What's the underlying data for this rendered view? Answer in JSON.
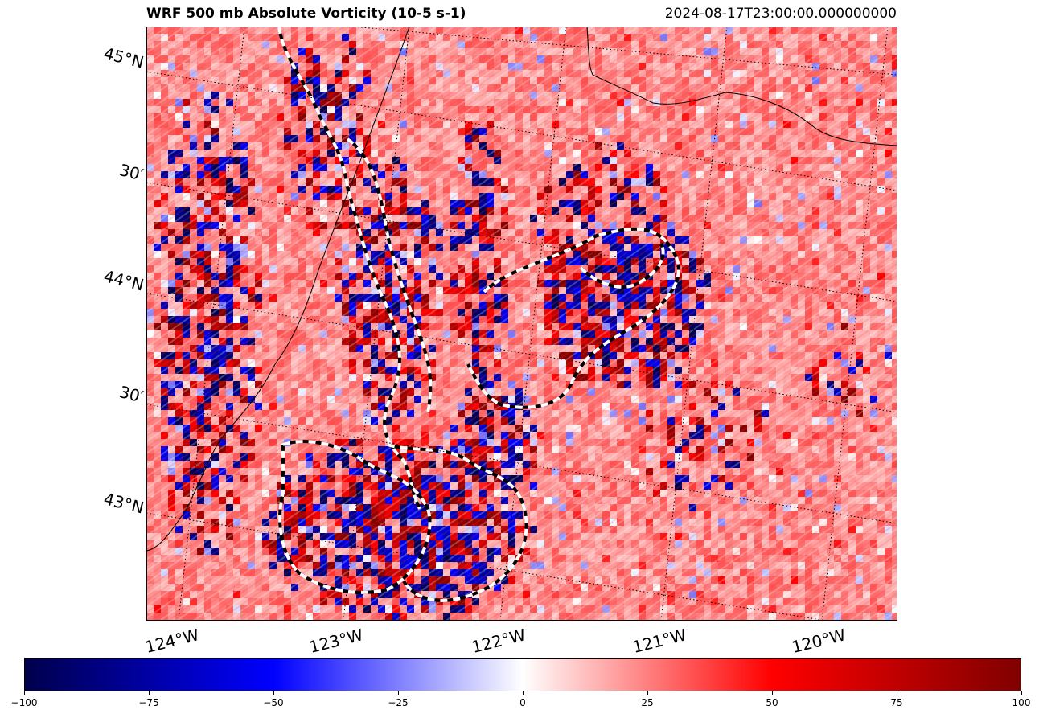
{
  "chart_data": {
    "type": "heatmap",
    "title": "WRF 500 mb Absolute Vorticity (10-5 s-1)",
    "valid_time": "2024-08-17T23:00:00.000000000",
    "lat_labels": [
      "45°N",
      "30′",
      "44°N",
      "30′",
      "43°N"
    ],
    "lon_labels": [
      "124°W",
      "123°W",
      "122°W",
      "121°W",
      "120°W"
    ],
    "colormap": "seismic",
    "colorbar": {
      "min": -100,
      "max": 100,
      "ticks": [
        -100,
        -75,
        -50,
        -25,
        0,
        25,
        50,
        75,
        100
      ],
      "tick_labels": [
        "−100",
        "−75",
        "−50",
        "−25",
        "0",
        "25",
        "50",
        "75",
        "100"
      ],
      "colors": [
        "#00004c",
        "#0000ff",
        "#ffffff",
        "#ff0000",
        "#800000"
      ]
    },
    "grid": true,
    "contours": "dashed black/white lines"
  }
}
